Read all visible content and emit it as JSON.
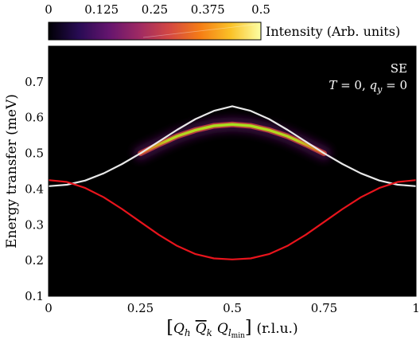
{
  "chart_data": {
    "type": "heatmap",
    "title": "",
    "xlabel": "[Q_h Q̅_k Q_lmin] (r.l.u.)",
    "xlabel_parts": {
      "prefix": "[",
      "q1": "Q",
      "q1_sub": "h",
      "q2": "Q",
      "q2_sub": "k",
      "q3": "Q",
      "q3_sub": "l",
      "q3_subsub": "min",
      "suffix": "]",
      "unit": "(r.l.u.)"
    },
    "ylabel": "Energy transfer (meV)",
    "xlim": [
      0,
      1
    ],
    "ylim": [
      0.1,
      0.8
    ],
    "xticks": [
      0,
      0.25,
      0.5,
      0.75,
      1
    ],
    "xtick_labels": [
      "0",
      "0.25",
      "0.5",
      "0.75",
      "1"
    ],
    "yticks": [
      0.1,
      0.2,
      0.3,
      0.4,
      0.5,
      0.6,
      0.7
    ],
    "ytick_labels": [
      "0.1",
      "0.2",
      "0.3",
      "0.4",
      "0.5",
      "0.6",
      "0.7"
    ],
    "background": "#000000",
    "colorbar": {
      "label": "Intensity (Arb. units)",
      "range": [
        0,
        0.5
      ],
      "ticks": [
        0,
        0.125,
        0.25,
        0.375,
        0.5
      ],
      "tick_labels": [
        "0",
        "0.125",
        "0.25",
        "0.375",
        "0.5"
      ],
      "colormap": [
        "#000004",
        "#280b54",
        "#65156e",
        "#9f2a63",
        "#d44842",
        "#f57d15",
        "#fac127",
        "#fcffa4"
      ]
    },
    "annotations": {
      "line1": "SE",
      "line2_T": "T",
      "line2_eq1": " = 0, ",
      "line2_q": "q",
      "line2_qsub": "y",
      "line2_eq2": " = 0"
    },
    "series": [
      {
        "color": "#e8e8e8",
        "x": [
          0,
          0.05,
          0.1,
          0.15,
          0.2,
          0.25,
          0.3,
          0.35,
          0.4,
          0.45,
          0.5,
          0.55,
          0.6,
          0.65,
          0.7,
          0.75,
          0.8,
          0.85,
          0.9,
          0.95,
          1
        ],
        "y": [
          0.408,
          0.412,
          0.424,
          0.444,
          0.47,
          0.5,
          0.533,
          0.566,
          0.596,
          0.619,
          0.632,
          0.619,
          0.596,
          0.566,
          0.533,
          0.5,
          0.47,
          0.444,
          0.424,
          0.412,
          0.408
        ]
      },
      {
        "color": "#e8141c",
        "x": [
          0,
          0.05,
          0.1,
          0.15,
          0.2,
          0.25,
          0.3,
          0.35,
          0.4,
          0.45,
          0.5,
          0.55,
          0.6,
          0.65,
          0.7,
          0.75,
          0.8,
          0.85,
          0.9,
          0.95,
          1
        ],
        "y": [
          0.425,
          0.42,
          0.403,
          0.377,
          0.344,
          0.308,
          0.272,
          0.241,
          0.218,
          0.206,
          0.203,
          0.206,
          0.218,
          0.241,
          0.272,
          0.308,
          0.344,
          0.377,
          0.403,
          0.42,
          0.425
        ]
      }
    ],
    "intensity_band": {
      "x_range": [
        0.25,
        0.75
      ],
      "x": [
        0.25,
        0.3,
        0.35,
        0.4,
        0.45,
        0.5,
        0.55,
        0.6,
        0.65,
        0.7,
        0.75
      ],
      "y": [
        0.5,
        0.525,
        0.548,
        0.565,
        0.577,
        0.581,
        0.577,
        0.565,
        0.548,
        0.525,
        0.5
      ],
      "peak_intensity": 0.5
    }
  }
}
